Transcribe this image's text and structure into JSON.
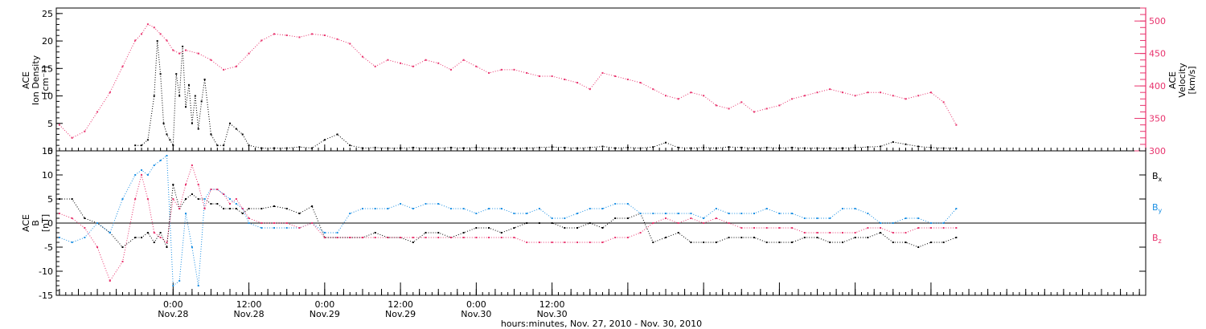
{
  "chart_data": [
    {
      "type": "scatter",
      "panel": "top",
      "ylabel_left": [
        "ACE",
        "Ion Density",
        "[cm⁻³]"
      ],
      "ylabel_right": [
        "ACE",
        "Velocity",
        "[km/s]"
      ],
      "left_axis": {
        "ylim": [
          0,
          26
        ],
        "ticks": [
          0,
          5,
          10,
          15,
          20,
          25
        ],
        "tick_labels": [
          "0",
          "5",
          "10",
          "15",
          "20",
          "25"
        ]
      },
      "right_axis": {
        "ylim": [
          300,
          520
        ],
        "ticks": [
          300,
          350,
          400,
          450,
          500
        ],
        "tick_labels": [
          "300",
          "350",
          "400",
          "450",
          "500"
        ]
      },
      "series": [
        {
          "color": "#000000",
          "axis": "left",
          "x": [
            -6,
            -5,
            -4,
            -3,
            -2.5,
            -2,
            -1.5,
            -1,
            -0.5,
            0,
            0.5,
            1,
            1.5,
            2,
            2.5,
            3,
            3.5,
            4,
            4.5,
            5,
            6,
            7,
            8,
            9,
            10,
            11,
            12,
            14,
            16,
            18,
            20,
            22,
            24,
            26,
            28,
            30,
            32,
            34,
            36,
            38,
            40,
            42,
            44,
            46,
            48,
            50,
            52,
            54,
            56,
            58,
            60,
            62,
            64,
            66,
            68,
            70,
            72,
            74,
            76,
            78,
            80,
            82,
            84,
            86,
            88,
            90,
            92,
            94,
            96,
            98,
            100,
            102,
            104,
            106,
            108,
            110,
            112,
            114,
            116,
            118,
            120,
            122,
            124
          ],
          "y": [
            1,
            1,
            2,
            10,
            20,
            14,
            5,
            3,
            2,
            1,
            14,
            10,
            19,
            8,
            12,
            5,
            10,
            4,
            9,
            13,
            3,
            1,
            1,
            5,
            4,
            3,
            1,
            0.5,
            0.5,
            0.5,
            0.7,
            0.5,
            2,
            3,
            1,
            0.5,
            0.6,
            0.5,
            0.5,
            0.6,
            0.5,
            0.5,
            0.6,
            0.5,
            0.6,
            0.5,
            0.5,
            0.5,
            0.5,
            0.6,
            0.7,
            0.6,
            0.5,
            0.6,
            0.8,
            0.5,
            0.6,
            0.5,
            0.7,
            1.5,
            0.6,
            0.5,
            0.6,
            0.5,
            0.7,
            0.6,
            0.5,
            0.6,
            0.5,
            0.6,
            0.5,
            0.5,
            0.5,
            0.5,
            0.6,
            0.7,
            0.8,
            1.6,
            1.2,
            0.8,
            0.6,
            0.5,
            0.5
          ]
        },
        {
          "color": "#e8336d",
          "axis": "right",
          "x": [
            -18,
            -16,
            -14,
            -12,
            -10,
            -8,
            -6,
            -5,
            -4,
            -3,
            -2,
            -1,
            0,
            1,
            2,
            4,
            6,
            8,
            10,
            12,
            14,
            16,
            18,
            20,
            22,
            24,
            26,
            28,
            30,
            32,
            34,
            36,
            38,
            40,
            42,
            44,
            46,
            48,
            50,
            52,
            54,
            56,
            58,
            60,
            62,
            64,
            66,
            68,
            70,
            72,
            74,
            76,
            78,
            80,
            82,
            84,
            86,
            88,
            90,
            92,
            94,
            96,
            98,
            100,
            102,
            104,
            106,
            108,
            110,
            112,
            114,
            116,
            118,
            120,
            122,
            124
          ],
          "y": [
            340,
            320,
            330,
            360,
            390,
            430,
            470,
            480,
            495,
            490,
            480,
            470,
            455,
            450,
            455,
            450,
            440,
            425,
            430,
            450,
            470,
            480,
            478,
            475,
            480,
            478,
            472,
            465,
            445,
            430,
            440,
            435,
            430,
            440,
            435,
            425,
            440,
            430,
            420,
            425,
            425,
            420,
            415,
            415,
            410,
            405,
            395,
            420,
            415,
            410,
            405,
            395,
            385,
            380,
            390,
            385,
            370,
            365,
            375,
            360,
            365,
            370,
            380,
            385,
            390,
            395,
            390,
            385,
            390,
            390,
            385,
            380,
            385,
            390,
            375,
            340
          ]
        }
      ]
    },
    {
      "type": "scatter",
      "panel": "bottom",
      "ylabel_left": [
        "ACE",
        "B",
        "[nT]"
      ],
      "ylim": [
        -15,
        15
      ],
      "ticks": [
        -15,
        -10,
        -5,
        0,
        5,
        10,
        15
      ],
      "tick_labels": [
        "-15",
        "-10",
        "-5",
        "0",
        "5",
        "10",
        "15"
      ],
      "zero_line": true,
      "legend_position": "right",
      "series": [
        {
          "name": "Bx",
          "color": "#000000",
          "x": [
            -18,
            -16,
            -14,
            -12,
            -10,
            -8,
            -6,
            -5,
            -4,
            -3,
            -2,
            -1,
            0,
            1,
            2,
            3,
            4,
            5,
            6,
            7,
            8,
            9,
            10,
            11,
            12,
            14,
            16,
            18,
            20,
            22,
            24,
            26,
            28,
            30,
            32,
            34,
            36,
            38,
            40,
            42,
            44,
            46,
            48,
            50,
            52,
            54,
            56,
            58,
            60,
            62,
            64,
            66,
            68,
            70,
            72,
            74,
            76,
            78,
            80,
            82,
            84,
            86,
            88,
            90,
            92,
            94,
            96,
            98,
            100,
            102,
            104,
            106,
            108,
            110,
            112,
            114,
            116,
            118,
            120,
            122,
            124
          ],
          "y": [
            5,
            5,
            1,
            0,
            -2,
            -5,
            -3,
            -3,
            -2,
            -4,
            -2,
            -5,
            8,
            3,
            5,
            6,
            5,
            5,
            4,
            4,
            3,
            3,
            3,
            2,
            3,
            3,
            3.5,
            3,
            2,
            3.5,
            -3,
            -3,
            -3,
            -3,
            -2,
            -3,
            -3,
            -4,
            -2,
            -2,
            -3,
            -2,
            -1,
            -1,
            -2,
            -1,
            0,
            0,
            0,
            -1,
            -1,
            0,
            -1,
            1,
            1,
            2,
            -4,
            -3,
            -2,
            -4,
            -4,
            -4,
            -3,
            -3,
            -3,
            -4,
            -4,
            -4,
            -3,
            -3,
            -4,
            -4,
            -3,
            -3,
            -2,
            -4,
            -4,
            -5,
            -4,
            -4,
            -3
          ]
        },
        {
          "name": "By",
          "color": "#1b8fe3",
          "x": [
            -18,
            -16,
            -14,
            -12,
            -10,
            -8,
            -6,
            -5,
            -4,
            -3,
            -2,
            -1,
            0,
            1,
            2,
            3,
            4,
            5,
            6,
            7,
            8,
            9,
            10,
            11,
            12,
            14,
            16,
            18,
            20,
            22,
            24,
            26,
            28,
            30,
            32,
            34,
            36,
            38,
            40,
            42,
            44,
            46,
            48,
            50,
            52,
            54,
            56,
            58,
            60,
            62,
            64,
            66,
            68,
            70,
            72,
            74,
            76,
            78,
            80,
            82,
            84,
            86,
            88,
            90,
            92,
            94,
            96,
            98,
            100,
            102,
            104,
            106,
            108,
            110,
            112,
            114,
            116,
            118,
            120,
            122,
            124
          ],
          "y": [
            -3,
            -4,
            -3,
            0,
            -2,
            5,
            10,
            11,
            10,
            12,
            13,
            14,
            -13,
            -12,
            2,
            -5,
            -13,
            5,
            7,
            7,
            6,
            5,
            4,
            3,
            0,
            -1,
            -1,
            -1,
            -1,
            0,
            -2,
            -2,
            2,
            3,
            3,
            3,
            4,
            3,
            4,
            4,
            3,
            3,
            2,
            3,
            3,
            2,
            2,
            3,
            1,
            1,
            2,
            3,
            3,
            4,
            4,
            2,
            2,
            2,
            2,
            2,
            1,
            3,
            2,
            2,
            2,
            3,
            2,
            2,
            1,
            1,
            1,
            3,
            3,
            2,
            0,
            0,
            1,
            1,
            0,
            0,
            3
          ]
        },
        {
          "name": "Bz",
          "color": "#e8336d",
          "x": [
            -18,
            -16,
            -14,
            -12,
            -10,
            -8,
            -6,
            -5,
            -4,
            -3,
            -2,
            -1,
            0,
            1,
            2,
            3,
            4,
            5,
            6,
            7,
            8,
            9,
            10,
            11,
            12,
            14,
            16,
            18,
            20,
            22,
            24,
            26,
            28,
            30,
            32,
            34,
            36,
            38,
            40,
            42,
            44,
            46,
            48,
            50,
            52,
            54,
            56,
            58,
            60,
            62,
            64,
            66,
            68,
            70,
            72,
            74,
            76,
            78,
            80,
            82,
            84,
            86,
            88,
            90,
            92,
            94,
            96,
            98,
            100,
            102,
            104,
            106,
            108,
            110,
            112,
            114,
            116,
            118,
            120,
            122,
            124
          ],
          "y": [
            2,
            1,
            -1,
            -5,
            -12,
            -8,
            5,
            10,
            5,
            -2,
            -3,
            -4,
            5,
            3,
            8,
            12,
            8,
            3,
            7,
            7,
            6,
            4,
            5,
            3,
            1,
            0,
            0,
            0,
            -1,
            0,
            -3,
            -3,
            -3,
            -3,
            -3,
            -3,
            -3,
            -3,
            -3,
            -3,
            -3,
            -3,
            -3,
            -3,
            -3,
            -3,
            -4,
            -4,
            -4,
            -4,
            -4,
            -4,
            -4,
            -3,
            -3,
            -2,
            0,
            1,
            0,
            1,
            0,
            1,
            0,
            -1,
            -1,
            -1,
            -1,
            -1,
            -2,
            -2,
            -2,
            -2,
            -2,
            -1,
            -1,
            -2,
            -2,
            -1,
            -1,
            -1,
            -1
          ]
        }
      ]
    }
  ],
  "xaxis": {
    "xlim": [
      -18.5,
      154
    ],
    "ticks": [
      0,
      12,
      24,
      36,
      48,
      60,
      72,
      84,
      96,
      108,
      120
    ],
    "labeled": [
      {
        "x": 0,
        "time": "0:00",
        "date": "Nov.28"
      },
      {
        "x": 12,
        "time": "12:00",
        "date": "Nov.28"
      },
      {
        "x": 24,
        "time": "0:00",
        "date": "Nov.29"
      },
      {
        "x": 36,
        "time": "12:00",
        "date": "Nov.29"
      },
      {
        "x": 48,
        "time": "0:00",
        "date": "Nov.30"
      },
      {
        "x": 60,
        "time": "12:00",
        "date": "Nov.30"
      }
    ],
    "xlabel": "hours:minutes, Nov. 27, 2010 - Nov. 30, 2010"
  },
  "legend": [
    {
      "label": "B",
      "sub": "x",
      "color": "#000000"
    },
    {
      "label": "B",
      "sub": "y",
      "color": "#1b8fe3"
    },
    {
      "label": "B",
      "sub": "z",
      "color": "#e8336d"
    }
  ]
}
